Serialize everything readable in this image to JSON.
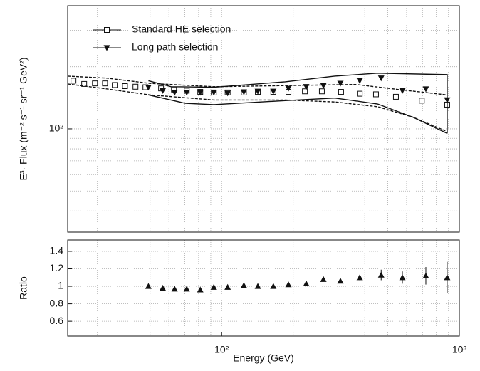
{
  "chart_data": [
    {
      "type": "scatter",
      "xlog": true,
      "ylog": true,
      "xlim": [
        22.5,
        1000
      ],
      "ylim": [
        31.6,
        395
      ],
      "xgrid": [
        30,
        40,
        50,
        60,
        70,
        80,
        90,
        100,
        200,
        300,
        400,
        500,
        600,
        700,
        800,
        900
      ],
      "ygrid": [
        40,
        50,
        60,
        70,
        80,
        90,
        200,
        300
      ],
      "yticks": [
        {
          "value": 100,
          "label": "10²"
        }
      ],
      "ylabel": "E³· Flux (m⁻² s⁻¹ sr⁻¹ GeV²)",
      "legend": "upper left",
      "series": [
        {
          "name": "Standard HE selection",
          "marker": "open-square",
          "color": "#111",
          "x": [
            23.8,
            26.4,
            29.3,
            32.3,
            35.5,
            39.2,
            43.4,
            47.8,
            55.6,
            63.0,
            71.3,
            81.3,
            92.7,
            106,
            124,
            142,
            165,
            191,
            224,
            264,
            318,
            381,
            446,
            541,
            695,
            889
          ],
          "values": [
            171,
            165,
            166,
            166,
            163,
            161,
            160,
            159,
            157,
            155,
            153,
            151,
            150,
            150,
            150,
            151,
            151,
            151,
            152,
            152,
            151,
            148,
            147,
            143,
            137,
            131
          ]
        },
        {
          "name": "Long path selection",
          "marker": "filled-triangle-down",
          "color": "#111",
          "x": [
            49.2,
            56.5,
            63.4,
            71.3,
            81.3,
            92.7,
            106,
            124,
            142,
            165,
            191,
            227,
            268,
            316,
            381,
            469,
            576,
            723,
            889
          ],
          "values": [
            159,
            153,
            150,
            150,
            150,
            150,
            149,
            151,
            152,
            152,
            157,
            160,
            162,
            166,
            171,
            176,
            153,
            156,
            138
          ]
        },
        {
          "marker": "line",
          "style": "dashed",
          "color": "#111",
          "x": [
            22.5,
            33.0,
            49.9,
            92.7,
            185,
            368,
            556,
            889
          ],
          "values": [
            180,
            176,
            166,
            160,
            162,
            164,
            155,
            146
          ]
        },
        {
          "marker": "line",
          "style": "dashed",
          "color": "#111",
          "x": [
            22.5,
            33.0,
            49.9,
            92.7,
            185,
            299,
            453,
            637,
            889
          ],
          "values": [
            165,
            156,
            146,
            138,
            138,
            135,
            128,
            114,
            97
          ]
        },
        {
          "marker": "line",
          "style": "solid",
          "color": "#111",
          "x": [
            49.2,
            61.3,
            92.7,
            185,
            299,
            453,
            889,
            889
          ],
          "values": [
            171,
            160,
            159,
            169,
            180,
            186,
            183,
            95
          ]
        },
        {
          "marker": "line",
          "style": "solid",
          "color": "#111",
          "x": [
            49.2,
            70.3,
            92.7,
            185,
            299,
            453,
            637,
            889
          ],
          "values": [
            146,
            133,
            131,
            137,
            141,
            132,
            114,
            95
          ]
        }
      ]
    },
    {
      "type": "scatter",
      "xlog": true,
      "ylog": false,
      "xlim": [
        22.5,
        1000
      ],
      "ylim": [
        0.43,
        1.53
      ],
      "xgrid": [
        30,
        40,
        50,
        60,
        70,
        80,
        90,
        100,
        200,
        300,
        400,
        500,
        600,
        700,
        800,
        900
      ],
      "xticks": [
        {
          "value": 100,
          "label": "10²"
        },
        {
          "value": 1000,
          "label": "10³"
        }
      ],
      "yticks": [
        0.6,
        0.8,
        1,
        1.2,
        1.4
      ],
      "xlabel": "Energy (GeV)",
      "ylabel": "Ratio",
      "series": [
        {
          "marker": "filled-triangle-up",
          "color": "#111",
          "x": [
            49.2,
            56.5,
            63.4,
            71.3,
            81.3,
            92.7,
            106,
            124,
            142,
            165,
            191,
            227,
            268,
            316,
            381,
            469,
            576,
            723,
            889
          ],
          "values": [
            1.0,
            0.98,
            0.97,
            0.97,
            0.96,
            0.99,
            0.99,
            1.01,
            1.0,
            1.0,
            1.02,
            1.03,
            1.08,
            1.06,
            1.1,
            1.13,
            1.1,
            1.12,
            1.1
          ],
          "errors": [
            null,
            null,
            null,
            null,
            null,
            null,
            null,
            null,
            null,
            null,
            null,
            null,
            null,
            null,
            0.03,
            0.06,
            0.07,
            0.1,
            0.18
          ]
        }
      ]
    }
  ]
}
